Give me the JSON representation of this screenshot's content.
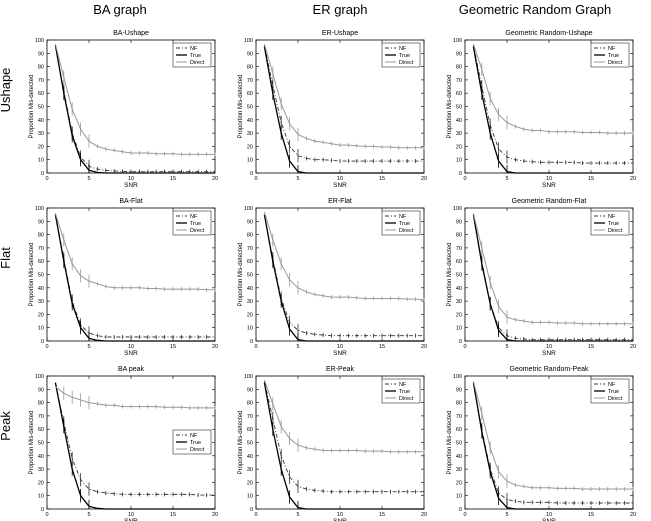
{
  "column_titles": [
    "BA graph",
    "ER graph",
    "Geometric Random Graph"
  ],
  "row_titles": [
    "Ushape",
    "Flat",
    "Peak"
  ],
  "chart_data": [
    {
      "type": "line",
      "title": "BA-Ushape",
      "xlabel": "SNR",
      "ylabel": "Proportion Mis-detected",
      "xlim": [
        0,
        20
      ],
      "ylim": [
        0,
        100
      ],
      "legend_position": "top-right",
      "x": [
        1,
        2,
        3,
        4,
        5,
        6,
        7,
        8,
        9,
        10,
        11,
        12,
        13,
        14,
        15,
        16,
        17,
        18,
        19,
        20
      ],
      "series": [
        {
          "name": "NF",
          "values": [
            96,
            62,
            30,
            12,
            5,
            3,
            2,
            1.5,
            1.2,
            1,
            1,
            1,
            1,
            1,
            1,
            1,
            1,
            1,
            1,
            1
          ]
        },
        {
          "name": "True",
          "values": [
            96,
            60,
            28,
            10,
            2,
            0.5,
            0,
            0,
            0,
            0,
            0,
            0,
            0,
            0,
            0,
            0,
            0,
            0,
            0,
            0
          ]
        },
        {
          "name": "Direct",
          "values": [
            97,
            72,
            48,
            33,
            24,
            20,
            18,
            17,
            16,
            15,
            15,
            15,
            14.5,
            14.5,
            14.5,
            14,
            14,
            14,
            14,
            14
          ]
        }
      ]
    },
    {
      "type": "line",
      "title": "ER-Ushape",
      "xlabel": "SNR",
      "ylabel": "Proportion Mis-detected",
      "xlim": [
        0,
        20
      ],
      "ylim": [
        0,
        100
      ],
      "legend_position": "top-right",
      "x": [
        1,
        2,
        3,
        4,
        5,
        6,
        7,
        8,
        9,
        10,
        11,
        12,
        13,
        14,
        15,
        16,
        17,
        18,
        19,
        20
      ],
      "series": [
        {
          "name": "NF",
          "values": [
            96,
            66,
            38,
            20,
            13,
            11,
            10,
            10,
            9.5,
            9,
            9,
            9,
            9,
            9,
            9,
            9,
            9,
            9,
            9,
            9
          ]
        },
        {
          "name": "True",
          "values": [
            95,
            60,
            30,
            9,
            1,
            0,
            0,
            0,
            0,
            0,
            0,
            0,
            0,
            0,
            0,
            0,
            0,
            0,
            0,
            0
          ]
        },
        {
          "name": "Direct",
          "values": [
            97,
            75,
            52,
            37,
            29,
            26,
            24,
            23,
            22,
            21,
            21,
            20.5,
            20,
            20,
            19.5,
            19.5,
            19,
            19,
            19,
            19
          ]
        }
      ]
    },
    {
      "type": "line",
      "title": "Geometric Random-Ushape",
      "xlabel": "SNR",
      "ylabel": "Proportion Mis-detected",
      "xlim": [
        0,
        20
      ],
      "ylim": [
        0,
        100
      ],
      "legend_position": "top-right",
      "x": [
        1,
        2,
        3,
        4,
        5,
        6,
        7,
        8,
        9,
        10,
        11,
        12,
        13,
        14,
        15,
        16,
        17,
        18,
        19,
        20
      ],
      "series": [
        {
          "name": "NF",
          "values": [
            96,
            65,
            36,
            18,
            12,
            10,
            9,
            8.5,
            8,
            8,
            8,
            8,
            8,
            7.5,
            7.5,
            7.5,
            7.5,
            7.5,
            7.5,
            7.5
          ]
        },
        {
          "name": "True",
          "values": [
            95,
            60,
            30,
            9,
            1,
            0,
            0,
            0,
            0,
            0,
            0,
            0,
            0,
            0,
            0,
            0,
            0,
            0,
            0,
            0
          ]
        },
        {
          "name": "Direct",
          "values": [
            97,
            78,
            56,
            44,
            38,
            35,
            33,
            32,
            32,
            31,
            31,
            31,
            31,
            30.5,
            30.5,
            30.5,
            30,
            30,
            30,
            30
          ]
        }
      ]
    },
    {
      "type": "line",
      "title": "BA-Flat",
      "xlabel": "SNR",
      "ylabel": "Proportion Mis-detected",
      "xlim": [
        0,
        20
      ],
      "ylim": [
        0,
        100
      ],
      "legend_position": "top-right",
      "x": [
        1,
        2,
        3,
        4,
        5,
        6,
        7,
        8,
        9,
        10,
        11,
        12,
        13,
        14,
        15,
        16,
        17,
        18,
        19,
        20
      ],
      "series": [
        {
          "name": "NF",
          "values": [
            95,
            62,
            30,
            12,
            6,
            4,
            3,
            3,
            3,
            3,
            3,
            3,
            3,
            3,
            3,
            3,
            3,
            3,
            3,
            3
          ]
        },
        {
          "name": "True",
          "values": [
            95,
            60,
            28,
            10,
            2,
            0.5,
            0,
            0,
            0,
            0,
            0,
            0,
            0,
            0,
            0,
            0,
            0,
            0,
            0,
            0
          ]
        },
        {
          "name": "Direct",
          "values": [
            96,
            76,
            58,
            49,
            45,
            43,
            41,
            40,
            40,
            40,
            40,
            39.5,
            39.5,
            39,
            39,
            39,
            39,
            39,
            38.5,
            38.5
          ]
        }
      ]
    },
    {
      "type": "line",
      "title": "ER-Flat",
      "xlabel": "SNR",
      "ylabel": "Proportion Mis-detected",
      "xlim": [
        0,
        20
      ],
      "ylim": [
        0,
        100
      ],
      "legend_position": "top-right",
      "x": [
        1,
        2,
        3,
        4,
        5,
        6,
        7,
        8,
        9,
        10,
        11,
        12,
        13,
        14,
        15,
        16,
        17,
        18,
        19,
        20
      ],
      "series": [
        {
          "name": "NF",
          "values": [
            95,
            62,
            32,
            14,
            8,
            6,
            5,
            4.5,
            4,
            4,
            4,
            4,
            4,
            4,
            4,
            4,
            4,
            4,
            4,
            4
          ]
        },
        {
          "name": "True",
          "values": [
            95,
            60,
            30,
            9,
            1,
            0,
            0,
            0,
            0,
            0,
            0,
            0,
            0,
            0,
            0,
            0,
            0,
            0,
            0,
            0
          ]
        },
        {
          "name": "Direct",
          "values": [
            97,
            76,
            58,
            46,
            40,
            37,
            35,
            34,
            33,
            33,
            33,
            32.5,
            32,
            32,
            32,
            32,
            32,
            31.5,
            31.5,
            31
          ]
        }
      ]
    },
    {
      "type": "line",
      "title": "Geometric Random-Flat",
      "xlabel": "SNR",
      "ylabel": "Proportion Mis-detected",
      "xlim": [
        0,
        20
      ],
      "ylim": [
        0,
        100
      ],
      "legend_position": "top-right",
      "x": [
        1,
        2,
        3,
        4,
        5,
        6,
        7,
        8,
        9,
        10,
        11,
        12,
        13,
        14,
        15,
        16,
        17,
        18,
        19,
        20
      ],
      "series": [
        {
          "name": "NF",
          "values": [
            95,
            60,
            28,
            10,
            4,
            2,
            1.5,
            1,
            1,
            1,
            1,
            1,
            1,
            1,
            1,
            1,
            1,
            1,
            1,
            1
          ]
        },
        {
          "name": "True",
          "values": [
            95,
            58,
            28,
            8,
            1,
            0,
            0,
            0,
            0,
            0,
            0,
            0,
            0,
            0,
            0,
            0,
            0,
            0,
            0,
            0
          ]
        },
        {
          "name": "Direct",
          "values": [
            96,
            70,
            44,
            26,
            18,
            16,
            15,
            14,
            14,
            14,
            13.5,
            13.5,
            13.5,
            13,
            13,
            13,
            13,
            13,
            13,
            13
          ]
        }
      ]
    },
    {
      "type": "line",
      "title": "BA peak",
      "xlabel": "SNR",
      "ylabel": "Proportion Mis-detected",
      "xlim": [
        0,
        20
      ],
      "ylim": [
        0,
        100
      ],
      "legend_position": "center-right",
      "x": [
        1,
        2,
        3,
        4,
        5,
        6,
        7,
        8,
        9,
        10,
        11,
        12,
        13,
        14,
        15,
        16,
        17,
        18,
        19,
        20
      ],
      "series": [
        {
          "name": "NF",
          "values": [
            95,
            65,
            38,
            22,
            15,
            13,
            12,
            11.5,
            11,
            11,
            11,
            11,
            11,
            11,
            11,
            11,
            11,
            10.5,
            10.5,
            10.5
          ]
        },
        {
          "name": "True",
          "values": [
            95,
            62,
            30,
            10,
            2,
            0.5,
            0,
            0,
            0,
            0,
            0,
            0,
            0,
            0,
            0,
            0,
            0,
            0,
            0,
            0
          ]
        },
        {
          "name": "Direct",
          "values": [
            92,
            87,
            84,
            82,
            80,
            79,
            78,
            78,
            77,
            77,
            77,
            77,
            77,
            76.5,
            76.5,
            76.5,
            76,
            76,
            76,
            76
          ]
        }
      ]
    },
    {
      "type": "line",
      "title": "ER-Peak",
      "xlabel": "SNR",
      "ylabel": "Proportion Mis-detected",
      "xlim": [
        0,
        20
      ],
      "ylim": [
        0,
        100
      ],
      "legend_position": "top-right",
      "x": [
        1,
        2,
        3,
        4,
        5,
        6,
        7,
        8,
        9,
        10,
        11,
        12,
        13,
        14,
        15,
        16,
        17,
        18,
        19,
        20
      ],
      "series": [
        {
          "name": "NF",
          "values": [
            96,
            68,
            40,
            24,
            17,
            15,
            14,
            13.5,
            13,
            13,
            13,
            13,
            13,
            13,
            13,
            13,
            13,
            13,
            13,
            13
          ]
        },
        {
          "name": "True",
          "values": [
            95,
            60,
            30,
            9,
            1,
            0,
            0,
            0,
            0,
            0,
            0,
            0,
            0,
            0,
            0,
            0,
            0,
            0,
            0,
            0
          ]
        },
        {
          "name": "Direct",
          "values": [
            97,
            79,
            62,
            53,
            48,
            46,
            45,
            44,
            44,
            44,
            44,
            44,
            43.5,
            43.5,
            43.5,
            43,
            43,
            43,
            43,
            43
          ]
        }
      ]
    },
    {
      "type": "line",
      "title": "Geometric Random-Peak",
      "xlabel": "SNR",
      "ylabel": "Proportion Mis-detected",
      "xlim": [
        0,
        20
      ],
      "ylim": [
        0,
        100
      ],
      "legend_position": "top-right",
      "x": [
        1,
        2,
        3,
        4,
        5,
        6,
        7,
        8,
        9,
        10,
        11,
        12,
        13,
        14,
        15,
        16,
        17,
        18,
        19,
        20
      ],
      "series": [
        {
          "name": "NF",
          "values": [
            95,
            60,
            30,
            12,
            7,
            6,
            5,
            5,
            5,
            5,
            4.5,
            4.5,
            4.5,
            4.5,
            4.5,
            4.5,
            4.5,
            4.5,
            4.5,
            4.5
          ]
        },
        {
          "name": "True",
          "values": [
            95,
            58,
            28,
            8,
            1,
            0,
            0,
            0,
            0,
            0,
            0,
            0,
            0,
            0,
            0,
            0,
            0,
            0,
            0,
            0
          ]
        },
        {
          "name": "Direct",
          "values": [
            96,
            72,
            46,
            28,
            21,
            18,
            17,
            16,
            16,
            16,
            15.5,
            15.5,
            15.5,
            15,
            15,
            15,
            15,
            15,
            15,
            15
          ]
        }
      ]
    }
  ]
}
